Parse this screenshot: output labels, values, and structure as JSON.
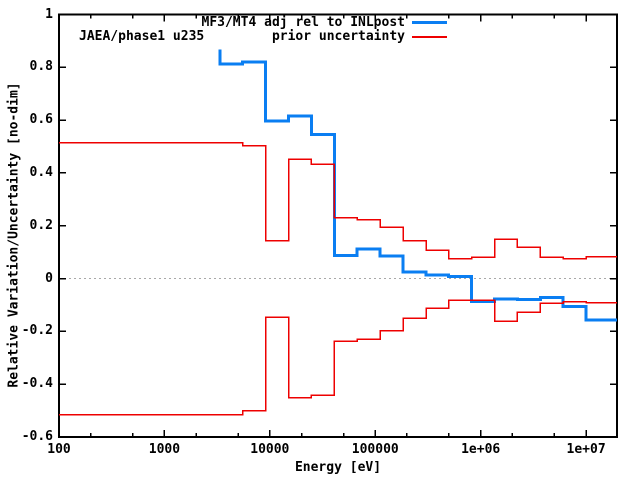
{
  "figure": {
    "plot_label": "JAEA/phase1 u235",
    "background": "#ffffff",
    "border_color": "#000000"
  },
  "legend": {
    "items": [
      {
        "label": "MF3/MT4 adj rel to INLpost",
        "color": "#0a7ef2",
        "line_width": 3
      },
      {
        "label": "prior uncertainty",
        "color": "#ee0000",
        "line_width": 2
      }
    ]
  },
  "chart_data": {
    "type": "line",
    "subtype": "step",
    "title": "",
    "xlabel": "Energy [eV]",
    "ylabel": "Relative Variation/Uncertainty [no-dim]",
    "x_scale": "log",
    "grid": false,
    "legend_position": "top-center-inside",
    "xlim": [
      100,
      19640000
    ],
    "ylim": [
      -0.6,
      1.0
    ],
    "x_ticks": [
      {
        "value": 100,
        "label": "100"
      },
      {
        "value": 1000,
        "label": "1000"
      },
      {
        "value": 10000,
        "label": "10000"
      },
      {
        "value": 100000,
        "label": "100000"
      },
      {
        "value": 1000000,
        "label": "1e+06"
      },
      {
        "value": 10000000,
        "label": "1e+07"
      }
    ],
    "x_minor_ticks": [
      200,
      500,
      2000,
      5000,
      20000,
      50000,
      200000,
      500000,
      2000000,
      5000000
    ],
    "y_ticks": [
      {
        "value": -0.6,
        "label": "-0.6"
      },
      {
        "value": -0.4,
        "label": "-0.4"
      },
      {
        "value": -0.2,
        "label": "-0.2"
      },
      {
        "value": 0,
        "label": "0"
      },
      {
        "value": 0.2,
        "label": "0.2"
      },
      {
        "value": 0.4,
        "label": "0.4"
      },
      {
        "value": 0.6,
        "label": "0.6"
      },
      {
        "value": 0.8,
        "label": "0.8"
      },
      {
        "value": 1,
        "label": "1"
      }
    ],
    "zero_line": {
      "y": 0,
      "style": "dotted",
      "color": "#a8a8a8"
    },
    "series": [
      {
        "name": "MF3/MT4 adj rel to INLpost",
        "color": "#0a7ef2",
        "line_width": 3,
        "points": [
          [
            3355,
            0.868
          ],
          [
            3355,
            0.813
          ],
          [
            5531,
            0.813
          ],
          [
            5531,
            0.82
          ],
          [
            9119,
            0.82
          ],
          [
            9119,
            0.597
          ],
          [
            15034,
            0.597
          ],
          [
            15034,
            0.615
          ],
          [
            24788,
            0.615
          ],
          [
            24788,
            0.546
          ],
          [
            40868,
            0.546
          ],
          [
            40868,
            0.087
          ],
          [
            67380,
            0.087
          ],
          [
            67380,
            0.112
          ],
          [
            111090,
            0.112
          ],
          [
            111090,
            0.086
          ],
          [
            183156,
            0.086
          ],
          [
            183156,
            0.024
          ],
          [
            302755,
            0.024
          ],
          [
            302755,
            0.014
          ],
          [
            497871,
            0.014
          ],
          [
            497871,
            0.008
          ],
          [
            820850,
            0.008
          ],
          [
            820850,
            -0.087
          ],
          [
            1353353,
            -0.087
          ],
          [
            1353353,
            -0.077
          ],
          [
            2231302,
            -0.077
          ],
          [
            2231302,
            -0.08
          ],
          [
            3678794,
            -0.08
          ],
          [
            3678794,
            -0.071
          ],
          [
            6065307,
            -0.071
          ],
          [
            6065307,
            -0.105
          ],
          [
            10000000,
            -0.105
          ],
          [
            10000000,
            -0.156
          ],
          [
            19640000,
            -0.156
          ]
        ]
      },
      {
        "name": "prior uncertainty (+)",
        "color": "#ee0000",
        "line_width": 1.5,
        "points": [
          [
            100,
            0.515
          ],
          [
            5531,
            0.515
          ],
          [
            5531,
            0.504
          ],
          [
            9119,
            0.504
          ],
          [
            9119,
            0.144
          ],
          [
            15034,
            0.144
          ],
          [
            15034,
            0.452
          ],
          [
            24788,
            0.452
          ],
          [
            24788,
            0.434
          ],
          [
            40868,
            0.434
          ],
          [
            40868,
            0.231
          ],
          [
            67380,
            0.231
          ],
          [
            67380,
            0.223
          ],
          [
            111090,
            0.223
          ],
          [
            111090,
            0.194
          ],
          [
            183156,
            0.194
          ],
          [
            183156,
            0.144
          ],
          [
            302755,
            0.144
          ],
          [
            302755,
            0.108
          ],
          [
            497871,
            0.108
          ],
          [
            497871,
            0.075
          ],
          [
            820850,
            0.075
          ],
          [
            820850,
            0.081
          ],
          [
            1353353,
            0.081
          ],
          [
            1353353,
            0.15
          ],
          [
            2231302,
            0.15
          ],
          [
            2231302,
            0.118
          ],
          [
            3678794,
            0.118
          ],
          [
            3678794,
            0.08
          ],
          [
            6065307,
            0.08
          ],
          [
            6065307,
            0.075
          ],
          [
            10000000,
            0.075
          ],
          [
            10000000,
            0.082
          ],
          [
            19640000,
            0.082
          ]
        ]
      },
      {
        "name": "prior uncertainty (-)",
        "color": "#ee0000",
        "line_width": 1.5,
        "points": [
          [
            100,
            -0.515
          ],
          [
            5531,
            -0.515
          ],
          [
            5531,
            -0.5
          ],
          [
            9119,
            -0.5
          ],
          [
            9119,
            -0.146
          ],
          [
            15034,
            -0.146
          ],
          [
            15034,
            -0.452
          ],
          [
            24788,
            -0.452
          ],
          [
            24788,
            -0.441
          ],
          [
            40868,
            -0.441
          ],
          [
            40868,
            -0.237
          ],
          [
            67380,
            -0.237
          ],
          [
            67380,
            -0.229
          ],
          [
            111090,
            -0.229
          ],
          [
            111090,
            -0.198
          ],
          [
            183156,
            -0.198
          ],
          [
            183156,
            -0.151
          ],
          [
            302755,
            -0.151
          ],
          [
            302755,
            -0.113
          ],
          [
            497871,
            -0.113
          ],
          [
            497871,
            -0.082
          ],
          [
            1353353,
            -0.082
          ],
          [
            1353353,
            -0.161
          ],
          [
            2231302,
            -0.161
          ],
          [
            2231302,
            -0.127
          ],
          [
            3678794,
            -0.127
          ],
          [
            3678794,
            -0.094
          ],
          [
            6065307,
            -0.094
          ],
          [
            6065307,
            -0.087
          ],
          [
            10000000,
            -0.087
          ],
          [
            10000000,
            -0.092
          ],
          [
            19640000,
            -0.092
          ]
        ]
      }
    ]
  }
}
